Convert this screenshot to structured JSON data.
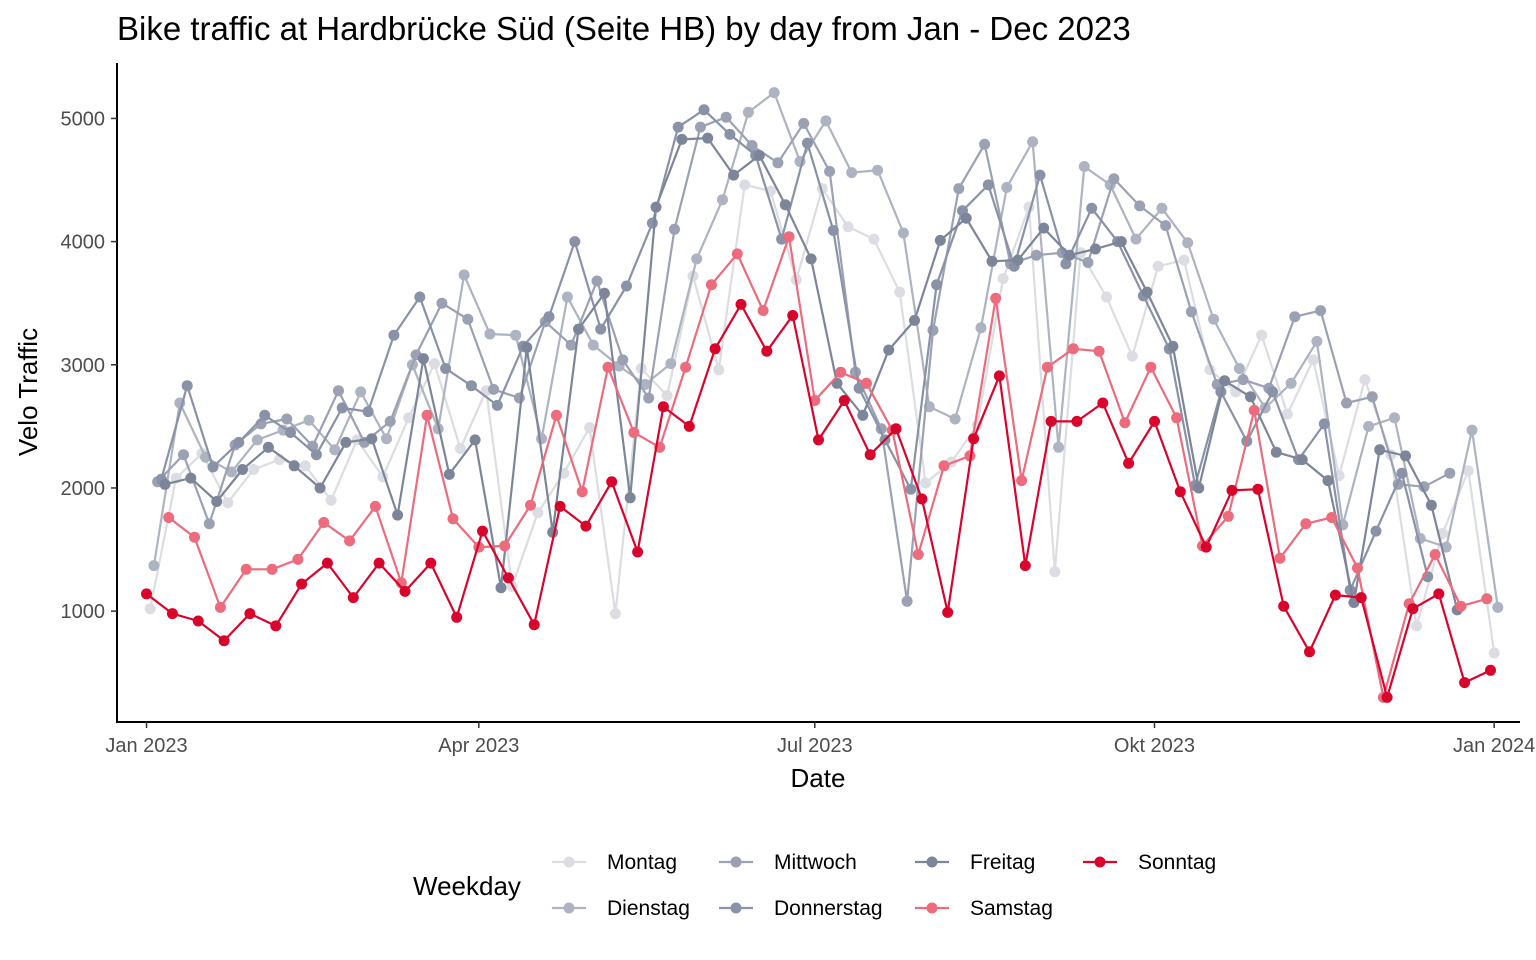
{
  "chart_data": {
    "type": "line",
    "title": "Bike traffic at Hardbrücke Süd (Seite HB) by day from Jan - Dec 2023",
    "xlabel": "Date",
    "ylabel": "Velo Traffic",
    "x_ticks": [
      "Jan 2023",
      "Apr 2023",
      "Jul 2023",
      "Okt 2023",
      "Jan 2024"
    ],
    "x_tick_dates": [
      "2023-01-01",
      "2023-04-01",
      "2023-07-01",
      "2023-10-01",
      "2024-01-01"
    ],
    "y_ticks": [
      1000,
      2000,
      3000,
      4000,
      5000
    ],
    "xlim": [
      "2022-12-24",
      "2024-01-08"
    ],
    "ylim": [
      100,
      5450
    ],
    "grid": false,
    "legend_title": "Weekday",
    "legend_position": "bottom",
    "series": [
      {
        "name": "Montag",
        "color": "#dcdde2",
        "start": "2023-01-02",
        "values": [
          1020,
          2080,
          2280,
          1880,
          2150,
          2230,
          2180,
          1900,
          2390,
          2090,
          2570,
          3010,
          2320,
          2790,
          1200,
          1800,
          2120,
          2490,
          980,
          2970,
          2750,
          3720,
          2960,
          4460,
          4410,
          3690,
          4430,
          4120,
          4020,
          3590,
          2040,
          2210,
          2510,
          3700,
          4280,
          1320,
          3910,
          3550,
          3070,
          3800,
          3850,
          2960,
          2780,
          3240,
          2600,
          3040,
          2100,
          2880,
          2270,
          880,
          1630,
          2140,
          660
        ]
      },
      {
        "name": "Dienstag",
        "color": "#aeb3c1",
        "start": "2023-01-03",
        "values": [
          1370,
          2690,
          2250,
          2130,
          2390,
          2470,
          2550,
          2310,
          2780,
          2400,
          3000,
          2480,
          3730,
          3250,
          3240,
          2400,
          3550,
          3160,
          2990,
          2840,
          3010,
          3860,
          4340,
          5050,
          5210,
          4650,
          4980,
          4560,
          4580,
          4070,
          2660,
          2560,
          3300,
          4440,
          4810,
          2330,
          4610,
          4460,
          4020,
          4270,
          3990,
          3370,
          2970,
          2650,
          2850,
          3190,
          1700,
          2500,
          2570,
          1590,
          1520,
          2470,
          1030
        ]
      },
      {
        "name": "Mittwoch",
        "color": "#9ba1b3",
        "start": "2023-01-04",
        "values": [
          2050,
          2270,
          1710,
          2350,
          2520,
          2560,
          2340,
          2790,
          2370,
          2540,
          3080,
          3500,
          3370,
          2800,
          2730,
          3350,
          3160,
          3680,
          3040,
          2730,
          4100,
          4930,
          5010,
          4780,
          4640,
          4960,
          4570,
          2940,
          2480,
          1080,
          3280,
          4430,
          4790,
          3820,
          3890,
          3910,
          3830,
          4510,
          4290,
          4130,
          3430,
          2840,
          2880,
          2810,
          3390,
          3440,
          2690,
          2740,
          2030,
          2010,
          2120
        ]
      },
      {
        "name": "Donnerstag",
        "color": "#8a92a7",
        "start": "2023-01-05",
        "values": [
          2070,
          2830,
          2170,
          2370,
          2590,
          2450,
          2270,
          2650,
          2620,
          3240,
          3550,
          2970,
          2830,
          2670,
          3150,
          3390,
          4000,
          3290,
          3640,
          4150,
          4930,
          5070,
          4870,
          4700,
          4020,
          4800,
          4090,
          2810,
          2390,
          1990,
          3650,
          4250,
          4460,
          3800,
          4540,
          3820,
          4270,
          4000,
          3560,
          3130,
          2020,
          2780,
          2380,
          2780,
          2230,
          2520,
          1170,
          1650,
          2120,
          1280
        ]
      },
      {
        "name": "Freitag",
        "color": "#7d8599",
        "start": "2023-01-06",
        "values": [
          2030,
          2080,
          1890,
          2150,
          2330,
          2180,
          2000,
          2370,
          2400,
          1780,
          3050,
          2110,
          2390,
          1190,
          3140,
          1640,
          3290,
          3580,
          1920,
          4280,
          4830,
          4840,
          4540,
          4700,
          4300,
          3860,
          2850,
          2590,
          3120,
          3360,
          4010,
          4190,
          3840,
          3850,
          4110,
          3890,
          3940,
          4000,
          3590,
          3150,
          2000,
          2870,
          2740,
          2290,
          2230,
          2060,
          1070,
          2310,
          2260,
          1860,
          1010
        ]
      },
      {
        "name": "Samstag",
        "color": "#ec6b7c",
        "start": "2023-01-07",
        "values": [
          1760,
          1600,
          1030,
          1340,
          1340,
          1420,
          1720,
          1570,
          1850,
          1230,
          2590,
          1750,
          1520,
          1530,
          1860,
          2590,
          1970,
          2980,
          2450,
          2330,
          2980,
          3650,
          3900,
          3440,
          4040,
          2710,
          2940,
          2850,
          2470,
          1460,
          2180,
          2260,
          3540,
          2060,
          2980,
          3130,
          3110,
          2530,
          2980,
          2570,
          1530,
          1770,
          2630,
          1430,
          1710,
          1760,
          1350,
          300,
          1060,
          1460,
          1040,
          1100
        ]
      },
      {
        "name": "Sonntag",
        "color": "#d9042b",
        "start": "2023-01-01",
        "values": [
          1140,
          980,
          920,
          760,
          980,
          880,
          1220,
          1390,
          1110,
          1390,
          1160,
          1390,
          950,
          1650,
          1270,
          890,
          1850,
          1690,
          2050,
          1480,
          2660,
          2500,
          3130,
          3490,
          3110,
          3400,
          2390,
          2710,
          2270,
          2480,
          1910,
          990,
          2400,
          2910,
          1370,
          2540,
          2540,
          2690,
          2200,
          2540,
          1970,
          1520,
          1980,
          1990,
          1040,
          670,
          1130,
          1110,
          300,
          1020,
          1140,
          420,
          520
        ]
      }
    ]
  }
}
